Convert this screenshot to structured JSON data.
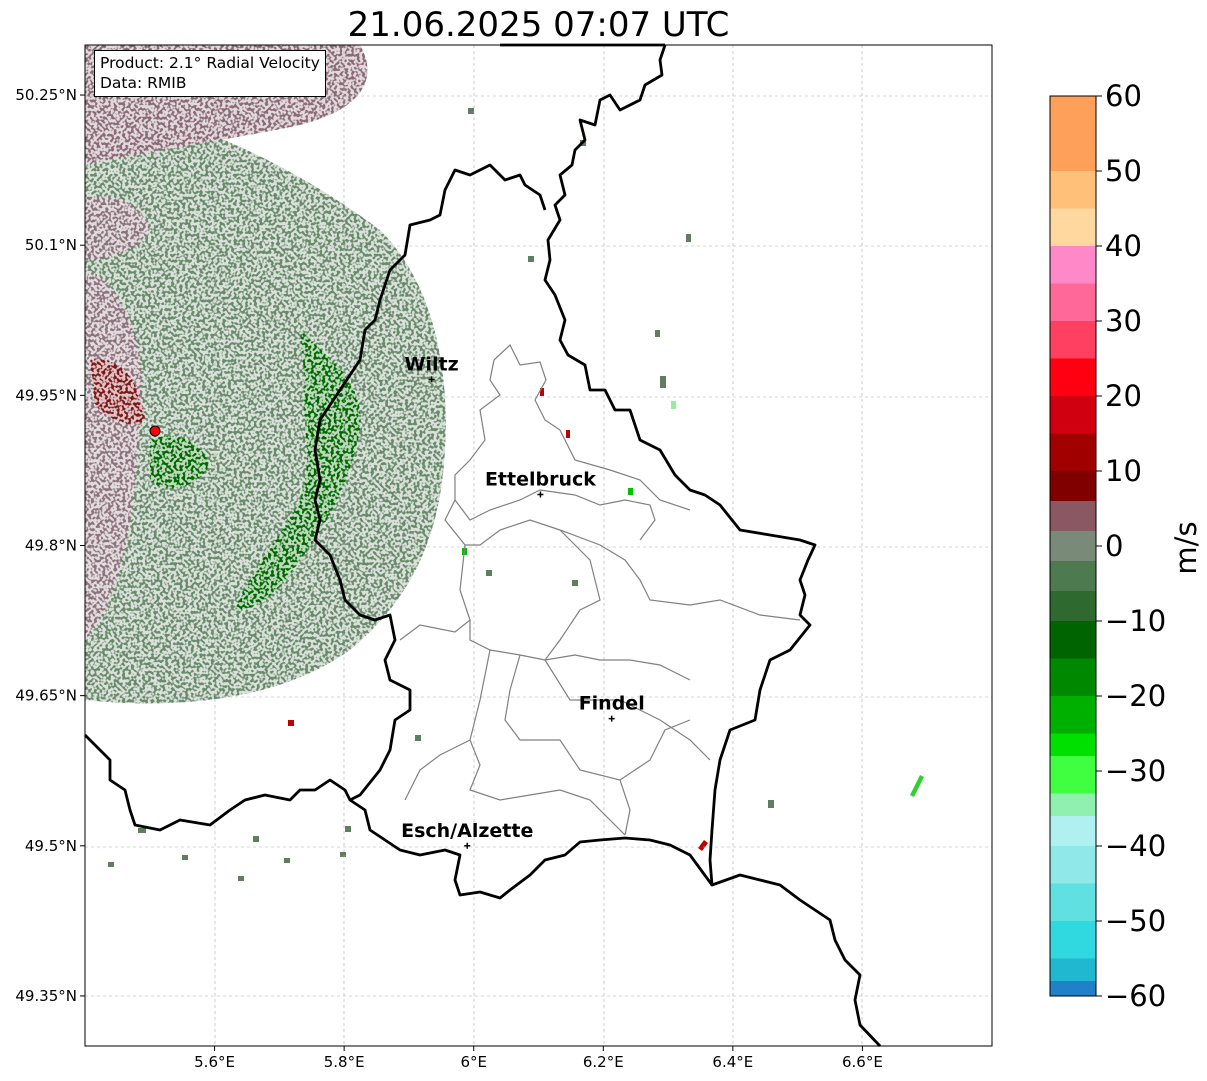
{
  "title": "21.06.2025 07:07 UTC",
  "info": {
    "product": "Product: 2.1° Radial Velocity",
    "data": "Data: RMIB"
  },
  "map": {
    "lon_range": [
      5.4,
      6.8
    ],
    "lat_range": [
      49.3,
      50.3
    ],
    "x_ticks": [
      "5.6°E",
      "5.8°E",
      "6°E",
      "6.2°E",
      "6.4°E",
      "6.6°E"
    ],
    "y_ticks": [
      "49.35°N",
      "49.5°N",
      "49.65°N",
      "49.8°N",
      "49.95°N",
      "50.1°N",
      "50.25°N"
    ],
    "gridlines": true,
    "radar_site": {
      "lon": 5.505,
      "lat": 49.914,
      "color": "#ff0000"
    },
    "cities": [
      {
        "name": "Wiltz",
        "lon": 5.935,
        "lat": 49.966
      },
      {
        "name": "Ettelbruck",
        "lon": 6.103,
        "lat": 49.851
      },
      {
        "name": "Findel",
        "lon": 6.213,
        "lat": 49.627
      },
      {
        "name": "Esch/Alzette",
        "lon": 5.99,
        "lat": 49.5
      }
    ]
  },
  "colorbar": {
    "label": "m/s",
    "range": [
      -60,
      60
    ],
    "ticks": [
      "60",
      "50",
      "40",
      "30",
      "20",
      "10",
      "0",
      "−10",
      "−20",
      "−30",
      "−40",
      "−50",
      "−60"
    ],
    "colors": {
      "v60": "#ffa05a",
      "v40": "#ff88c8",
      "v30": "#ff4060",
      "v20": "#e00010",
      "v10": "#800000",
      "v5": "#8a5862",
      "v0": "#7a8a78",
      "vm5": "#4e7a50",
      "vm10": "#006400",
      "vm20": "#00b000",
      "vm30": "#40ff40",
      "vm40": "#b0f0f0",
      "vm50": "#30d8e0",
      "vm60": "#2080c8"
    }
  }
}
